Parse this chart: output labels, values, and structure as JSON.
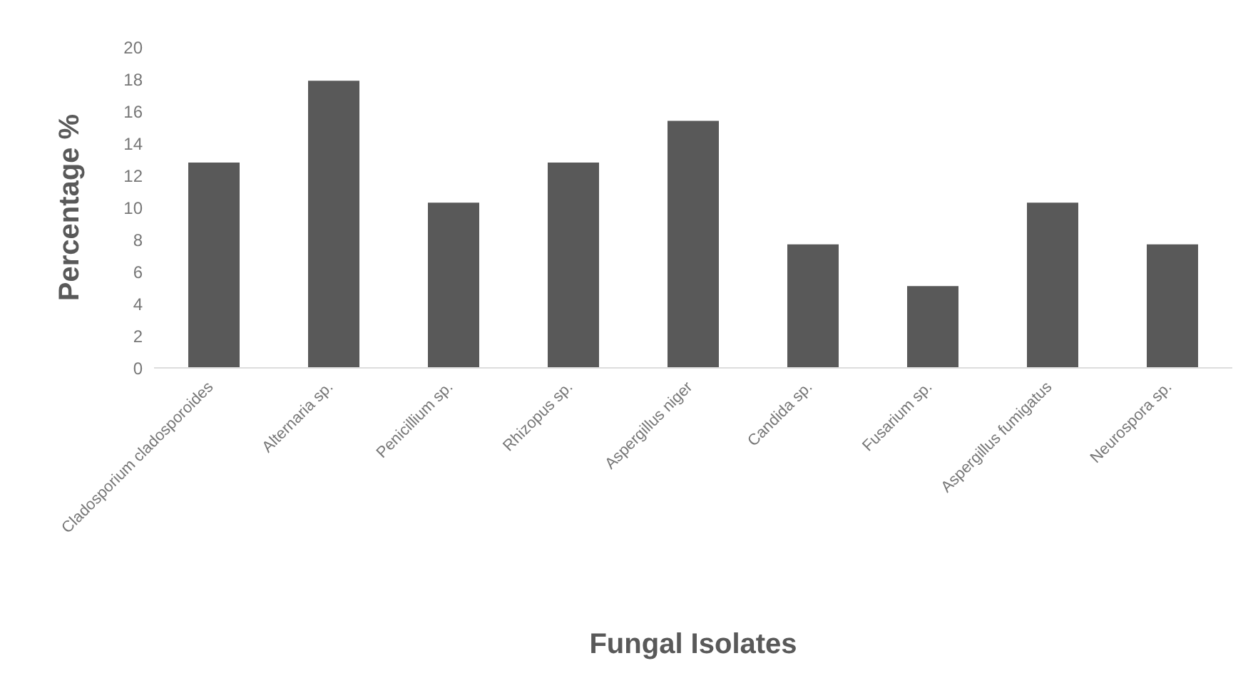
{
  "chart_data": {
    "type": "bar",
    "xlabel": "Fungal Isolates",
    "ylabel": "Percentage %",
    "categories": [
      "Cladosporium cladosporoides",
      "Alternaria sp.",
      "Penicillium sp.",
      "Rhizopus sp.",
      "Aspergillus niger",
      "Candida sp.",
      "Fusarium sp.",
      "Aspergillus fumigatus",
      "Neurospora sp."
    ],
    "values": [
      12.8,
      17.9,
      10.3,
      12.8,
      15.4,
      7.7,
      5.1,
      10.3,
      7.7
    ],
    "color": "#595959",
    "ylim": [
      0,
      20
    ],
    "yticks": [
      0,
      2,
      4,
      6,
      8,
      10,
      12,
      14,
      16,
      18,
      20
    ],
    "grid": false,
    "legend": false
  }
}
